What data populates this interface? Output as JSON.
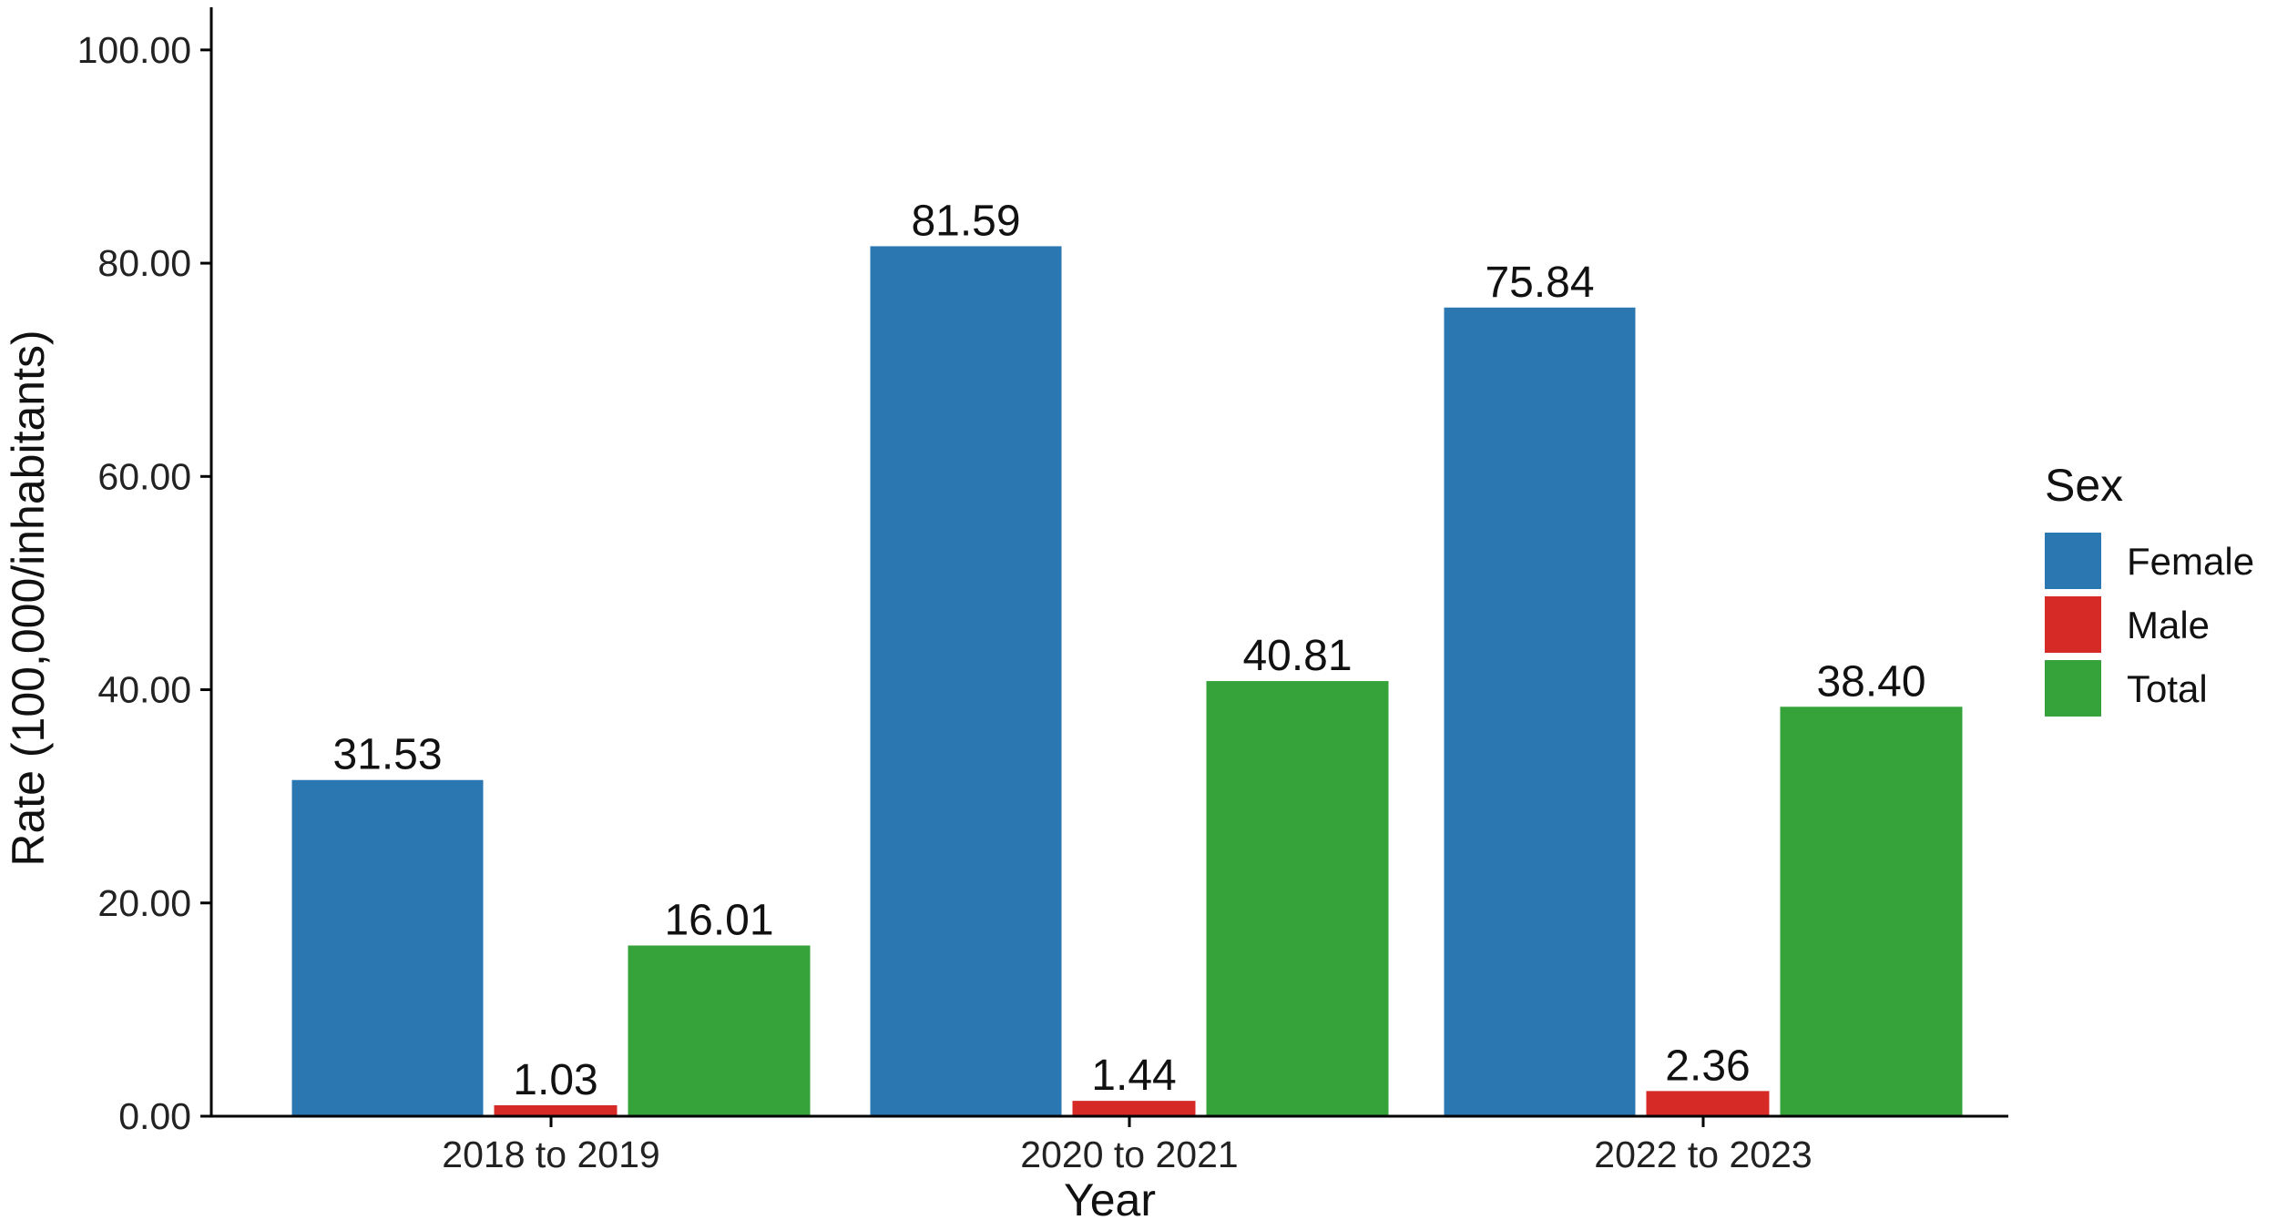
{
  "chart_data": {
    "type": "bar",
    "xlabel": "Year",
    "ylabel": "Rate (100,000/inhabitants)",
    "categories": [
      "2018 to 2019",
      "2020 to 2021",
      "2022 to 2023"
    ],
    "series": [
      {
        "name": "Female",
        "color": "#2b77b2",
        "values": [
          31.53,
          81.59,
          75.84
        ]
      },
      {
        "name": "Male",
        "color": "#d62a27",
        "values": [
          1.03,
          1.44,
          2.36
        ]
      },
      {
        "name": "Total",
        "color": "#36a33a",
        "values": [
          16.01,
          40.81,
          38.4
        ]
      }
    ],
    "value_labels": [
      [
        "31.53",
        "81.59",
        "75.84"
      ],
      [
        "1.03",
        "1.44",
        "2.36"
      ],
      [
        "16.01",
        "40.81",
        "38.40"
      ]
    ],
    "yticks": [
      0,
      20,
      40,
      60,
      80,
      100
    ],
    "ytick_labels": [
      "0.00",
      "20.00",
      "40.00",
      "60.00",
      "80.00",
      "100.00"
    ],
    "ylim": [
      0,
      104
    ],
    "grid": false,
    "legend": {
      "title": "Sex",
      "placement": "right"
    }
  }
}
